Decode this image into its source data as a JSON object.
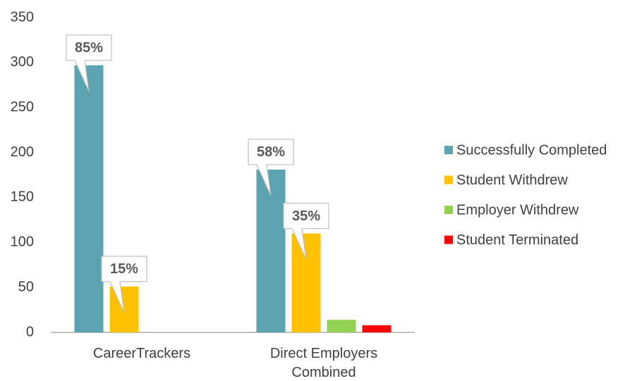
{
  "chart_data": {
    "type": "bar",
    "categories": [
      "CareerTrackers",
      "Direct Employers Combined"
    ],
    "series": [
      {
        "name": "Successfully Completed",
        "color": "#5ba3b0",
        "values": [
          297,
          181
        ],
        "callouts": [
          "85%",
          "58%"
        ]
      },
      {
        "name": "Student Withdrew",
        "color": "#ffc000",
        "values": [
          51,
          110
        ],
        "callouts": [
          "15%",
          "35%"
        ]
      },
      {
        "name": "Employer Withdrew",
        "color": "#92d050",
        "values": [
          0,
          14
        ]
      },
      {
        "name": "Student Terminated",
        "color": "#ff0000",
        "values": [
          0,
          8
        ]
      }
    ],
    "ylim": [
      0,
      350
    ],
    "yticks": [
      0,
      50,
      100,
      150,
      200,
      250,
      300,
      350
    ],
    "grid": false,
    "legend": "right"
  }
}
